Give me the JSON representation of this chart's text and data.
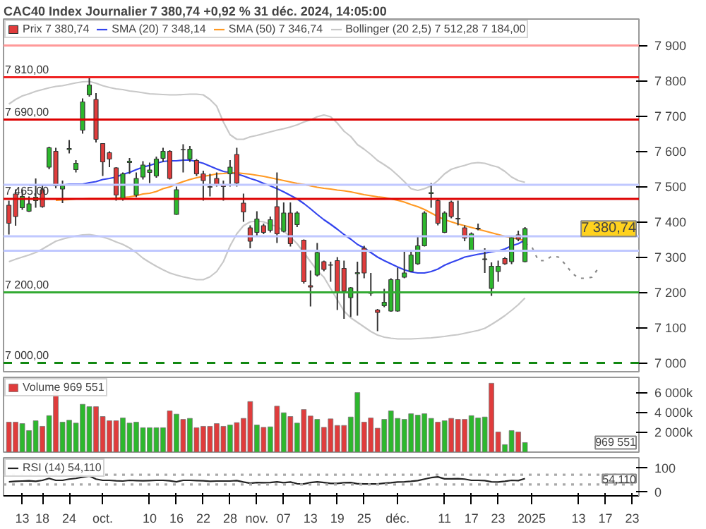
{
  "chart_data": [
    {
      "type": "candlestick",
      "title": "CAC40 Index Journalier 7 380,74 +0,92 % 31 déc. 2024, 14:05:00",
      "series": [
        {
          "name": "Prix 7 380,74",
          "type": "candlestick",
          "ohlc": [
            [
              7447,
              7460,
              7364,
              7396
            ],
            [
              7479,
              7492,
              7389,
              7415
            ],
            [
              7440,
              7492,
              7434,
              7472
            ],
            [
              7430,
              7472,
              7428,
              7451
            ],
            [
              7460,
              7523,
              7440,
              7470
            ],
            [
              7491,
              7504,
              7440,
              7443
            ],
            [
              7555,
              7613,
              7549,
              7610
            ],
            [
              7600,
              7610,
              7495,
              7502
            ],
            [
              7493,
              7517,
              7453,
              7502
            ],
            [
              7605,
              7632,
              7594,
              7608
            ],
            [
              7548,
              7575,
              7540,
              7566
            ],
            [
              7660,
              7750,
              7650,
              7740
            ],
            [
              7760,
              7808,
              7755,
              7788
            ],
            [
              7747,
              7765,
              7625,
              7634
            ],
            [
              7622,
              7622,
              7530,
              7570
            ],
            [
              7596,
              7600,
              7555,
              7578
            ],
            [
              7553,
              7555,
              7460,
              7476
            ],
            [
              7466,
              7540,
              7460,
              7536
            ],
            [
              7568,
              7581,
              7536,
              7572
            ],
            [
              7476,
              7540,
              7470,
              7523
            ],
            [
              7527,
              7572,
              7520,
              7561
            ],
            [
              7540,
              7568,
              7510,
              7547
            ],
            [
              7530,
              7585,
              7525,
              7578
            ],
            [
              7580,
              7610,
              7570,
              7600
            ],
            [
              7600,
              7603,
              7520,
              7523
            ],
            [
              7421,
              7500,
              7420,
              7491
            ],
            [
              7605,
              7620,
              7540,
              7604
            ],
            [
              7578,
              7615,
              7570,
              7606
            ],
            [
              7574,
              7578,
              7530,
              7536
            ],
            [
              7536,
              7545,
              7460,
              7517
            ],
            [
              7500,
              7536,
              7472,
              7498
            ],
            [
              7523,
              7540,
              7500,
              7504
            ],
            [
              7505,
              7517,
              7460,
              7500
            ],
            [
              7536,
              7575,
              7500,
              7555
            ],
            [
              7591,
              7610,
              7500,
              7510
            ],
            [
              7453,
              7480,
              7400,
              7428
            ],
            [
              7383,
              7390,
              7325,
              7345
            ],
            [
              7370,
              7430,
              7360,
              7408
            ],
            [
              7389,
              7395,
              7365,
              7370
            ],
            [
              7376,
              7415,
              7370,
              7406
            ],
            [
              7443,
              7540,
              7340,
              7366
            ],
            [
              7373,
              7455,
              7370,
              7425
            ],
            [
              7425,
              7455,
              7330,
              7338
            ],
            [
              7392,
              7430,
              7385,
              7425
            ],
            [
              7348,
              7350,
              7225,
              7230
            ],
            [
              7219,
              7262,
              7160,
              7215
            ],
            [
              7249,
              7340,
              7245,
              7313
            ],
            [
              7287,
              7290,
              7260,
              7265
            ],
            [
              7278,
              7287,
              7230,
              7277
            ],
            [
              7290,
              7300,
              7150,
              7198
            ],
            [
              7268,
              7290,
              7125,
              7204
            ],
            [
              7185,
              7215,
              7130,
              7213
            ],
            [
              7253,
              7287,
              7134,
              7256
            ],
            [
              7325,
              7332,
              7240,
              7255
            ],
            [
              7200,
              7255,
              7190,
              7197
            ],
            [
              7150,
              7153,
              7090,
              7143
            ],
            [
              7162,
              7210,
              7158,
              7172
            ],
            [
              7147,
              7240,
              7145,
              7236
            ],
            [
              7147,
              7270,
              7145,
              7236
            ],
            [
              7243,
              7320,
              7240,
              7255
            ],
            [
              7260,
              7320,
              7258,
              7306
            ],
            [
              7281,
              7360,
              7278,
              7332
            ],
            [
              7332,
              7430,
              7330,
              7425
            ],
            [
              7480,
              7510,
              7440,
              7483
            ],
            [
              7460,
              7465,
              7390,
              7396
            ],
            [
              7370,
              7430,
              7368,
              7425
            ],
            [
              7456,
              7460,
              7410,
              7415
            ],
            [
              7410,
              7460,
              7390,
              7408
            ],
            [
              7383,
              7390,
              7345,
              7354
            ],
            [
              7319,
              7370,
              7315,
              7366
            ],
            [
              7380,
              7395,
              7376,
              7382
            ],
            [
              7293,
              7325,
              7255,
              7295
            ],
            [
              7211,
              7285,
              7190,
              7274
            ],
            [
              7259,
              7290,
              7230,
              7274
            ],
            [
              7296,
              7300,
              7278,
              7281
            ],
            [
              7287,
              7360,
              7280,
              7355
            ],
            [
              7363,
              7375,
              7345,
              7351
            ],
            [
              7287,
              7385,
              7285,
              7380.74
            ],
            null,
            null,
            null,
            null,
            null,
            null,
            null,
            null,
            null,
            null,
            null,
            null,
            null,
            null,
            null,
            null,
            null
          ],
          "colors": [
            "#e03c3c",
            "#e03c3c",
            "#2db82d",
            "#2db82d",
            "#2db82d",
            "#e03c3c",
            "#2db82d",
            "#e03c3c",
            "#2db82d",
            "#2db82d",
            "#2db82d",
            "#2db82d",
            "#2db82d",
            "#e03c3c",
            "#e03c3c",
            "#e03c3c",
            "#e03c3c",
            "#2db82d",
            "#2db82d",
            "#2db82d",
            "#2db82d",
            "#2db82d",
            "#2db82d",
            "#2db82d",
            "#e03c3c",
            "#2db82d",
            "#e03c3c",
            "#2db82d",
            "#e03c3c",
            "#e03c3c",
            "#e03c3c",
            "#e03c3c",
            "#e03c3c",
            "#2db82d",
            "#e03c3c",
            "#e03c3c",
            "#e03c3c",
            "#2db82d",
            "#e03c3c",
            "#2db82d",
            "#e03c3c",
            "#2db82d",
            "#e03c3c",
            "#2db82d",
            "#e03c3c",
            "#e03c3c",
            "#2db82d",
            "#e03c3c",
            "#e03c3c",
            "#e03c3c",
            "#e03c3c",
            "#2db82d",
            "#2db82d",
            "#e03c3c",
            "#e03c3c",
            "#e03c3c",
            "#2db82d",
            "#2db82d",
            "#2db82d",
            "#2db82d",
            "#2db82d",
            "#2db82d",
            "#2db82d",
            "#2db82d",
            "#e03c3c",
            "#2db82d",
            "#e03c3c",
            "#e03c3c",
            "#e03c3c",
            "#2db82d",
            "#2db82d",
            "#2db82d",
            "#2db82d",
            "#2db82d",
            "#e03c3c",
            "#2db82d",
            "#e03c3c",
            "#2db82d",
            null,
            null,
            null,
            null,
            null,
            null,
            null,
            null,
            null,
            null,
            null,
            null,
            null,
            null,
            null,
            null,
            null
          ]
        },
        {
          "name": "SMA (20) 7 348,14",
          "type": "line",
          "color": "#3344ee",
          "values": [
            null,
            null,
            null,
            7504,
            7504,
            7504,
            7504,
            7504,
            7504,
            7507,
            7507,
            7507,
            7511,
            7514,
            7520,
            7523,
            7527,
            7535,
            7540,
            7548,
            7555,
            7560,
            7566,
            7571,
            7573,
            7573,
            7575,
            7575,
            7571,
            7566,
            7558,
            7550,
            7543,
            7539,
            7536,
            7530,
            7523,
            7517,
            7509,
            7502,
            7494,
            7485,
            7475,
            7465,
            7452,
            7437,
            7421,
            7406,
            7393,
            7379,
            7364,
            7351,
            7336,
            7326,
            7313,
            7300,
            7290,
            7281,
            7272,
            7264,
            7258,
            7255,
            7255,
            7259,
            7266,
            7277,
            7285,
            7292,
            7300,
            7304,
            7308,
            7311,
            7315,
            7318,
            7323,
            7332,
            7338,
            7348,
            null,
            null,
            null,
            null,
            null,
            null,
            null,
            null,
            null,
            null,
            null,
            null,
            null,
            null,
            null,
            null,
            null
          ]
        },
        {
          "name": "SMA (50) 7 346,74",
          "type": "line",
          "color": "#ff9922",
          "values": [
            null,
            null,
            null,
            null,
            null,
            null,
            null,
            7461,
            7462,
            7463,
            7465,
            7465,
            7466,
            7466,
            7466,
            7466,
            7467,
            7469,
            7471,
            7474,
            7479,
            7481,
            7486,
            7494,
            7499,
            7507,
            7514,
            7520,
            7525,
            7529,
            7532,
            7536,
            7537,
            7539,
            7539,
            7537,
            7535,
            7532,
            7529,
            7525,
            7521,
            7517,
            7513,
            7509,
            7506,
            7502,
            7498,
            7495,
            7493,
            7490,
            7488,
            7485,
            7481,
            7477,
            7474,
            7471,
            7469,
            7465,
            7461,
            7456,
            7449,
            7443,
            7435,
            7425,
            7415,
            7406,
            7400,
            7394,
            7389,
            7384,
            7379,
            7374,
            7369,
            7364,
            7359,
            7355,
            7351,
            7347,
            null,
            null,
            null,
            null,
            null,
            null,
            null,
            null,
            null,
            null,
            null,
            null,
            null,
            null,
            null,
            null,
            null
          ]
        },
        {
          "name": "Bollinger (20 2,5) 7 512,28 7 184,00",
          "type": "line",
          "color": "#c8c8c8",
          "values": [
            7734,
            7747,
            7757,
            7763,
            7770,
            7775,
            7780,
            7784,
            7786,
            7790,
            7794,
            7797,
            7798,
            7793,
            7786,
            7781,
            7777,
            7775,
            7771,
            7769,
            7766,
            7763,
            7762,
            7761,
            7760,
            7760,
            7761,
            7762,
            7762,
            7760,
            7747,
            7728,
            7683,
            7647,
            7634,
            7634,
            7641,
            7645,
            7650,
            7655,
            7660,
            7664,
            7669,
            7675,
            7683,
            7689,
            7698,
            7703,
            7698,
            7680,
            7657,
            7642,
            7619,
            7606,
            7591,
            7574,
            7562,
            7549,
            7532,
            7514,
            7494,
            7489,
            7494,
            7502,
            7517,
            7536,
            7549,
            7555,
            7560,
            7566,
            7568,
            7566,
            7560,
            7555,
            7543,
            7527,
            7517,
            7512,
            null,
            null,
            null,
            null,
            null,
            null,
            null,
            null,
            null,
            null,
            null,
            null,
            null,
            null,
            null,
            null,
            null
          ]
        },
        {
          "type": "line",
          "color": "#c8c8c8",
          "values": [
            7287,
            7294,
            7300,
            7306,
            7313,
            7323,
            7334,
            7345,
            7351,
            7356,
            7360,
            7363,
            7364,
            7361,
            7357,
            7351,
            7343,
            7336,
            7326,
            7313,
            7297,
            7285,
            7274,
            7264,
            7255,
            7249,
            7244,
            7240,
            7236,
            7236,
            7244,
            7259,
            7287,
            7332,
            7366,
            7389,
            7400,
            7402,
            7400,
            7392,
            7387,
            7374,
            7357,
            7338,
            7313,
            7287,
            7262,
            7243,
            7211,
            7179,
            7147,
            7128,
            7115,
            7102,
            7089,
            7079,
            7073,
            7070,
            7068,
            7068,
            7068,
            7069,
            7070,
            7071,
            7073,
            7075,
            7078,
            7080,
            7084,
            7088,
            7092,
            7098,
            7109,
            7121,
            7134,
            7149,
            7165,
            7184,
            null,
            null,
            null,
            null,
            null,
            null,
            null,
            null,
            null,
            null,
            null,
            null,
            null,
            null,
            null,
            null,
            null
          ]
        },
        {
          "type": "line",
          "color": "#888888",
          "line_style": "dotted",
          "values": [
            null,
            null,
            null,
            null,
            null,
            null,
            null,
            null,
            null,
            null,
            null,
            null,
            null,
            null,
            null,
            null,
            null,
            null,
            null,
            null,
            null,
            null,
            null,
            null,
            null,
            null,
            null,
            null,
            null,
            null,
            null,
            null,
            null,
            null,
            null,
            null,
            null,
            null,
            null,
            null,
            null,
            null,
            null,
            null,
            null,
            null,
            null,
            null,
            null,
            null,
            null,
            null,
            null,
            null,
            null,
            null,
            null,
            null,
            null,
            null,
            null,
            null,
            null,
            null,
            null,
            null,
            null,
            null,
            null,
            null,
            null,
            null,
            null,
            null,
            null,
            null,
            null,
            7338,
            7330,
            7290,
            7290,
            7303,
            7300,
            7280,
            7255,
            7240,
            7240,
            7243,
            7270,
            null,
            null,
            null,
            null,
            null,
            null
          ]
        }
      ],
      "ref_lines": [
        {
          "axis": "y",
          "value": 7900,
          "label": null,
          "color": "#ff9999"
        },
        {
          "axis": "y",
          "value": 7810,
          "label": "7 810,00",
          "color": "#ee2222"
        },
        {
          "axis": "y",
          "value": 7690,
          "label": "7 690,00",
          "color": "#dd0000"
        },
        {
          "axis": "y",
          "value": 7505,
          "label": null,
          "color": "#c0c8ff"
        },
        {
          "axis": "y",
          "value": 7465,
          "label": "7 465,00",
          "color": "#dd0000"
        },
        {
          "axis": "y",
          "value": 7359,
          "label": null,
          "color": "#c0c8ff"
        },
        {
          "axis": "y",
          "value": 7318,
          "label": null,
          "color": "#c0c8ff"
        },
        {
          "axis": "y",
          "value": 7200,
          "label": "7 200,00",
          "color": "#33aa33"
        },
        {
          "axis": "y",
          "value": 7000,
          "label": "7 000,00",
          "color": "#118811",
          "line_style": "dashed"
        }
      ],
      "annotations": [
        "7 380,74"
      ],
      "ylim": [
        6975,
        7975
      ],
      "yticks": [
        {
          "value": 7000,
          "label": "7 000"
        },
        {
          "value": 7100,
          "label": "7 100"
        },
        {
          "value": 7200,
          "label": "7 200"
        },
        {
          "value": 7300,
          "label": "7 300"
        },
        {
          "value": 7400,
          "label": "7 400"
        },
        {
          "value": 7500,
          "label": "7 500"
        },
        {
          "value": 7600,
          "label": "7 600"
        },
        {
          "value": 7700,
          "label": "7 700"
        },
        {
          "value": 7800,
          "label": "7 800"
        },
        {
          "value": 7900,
          "label": "7 900"
        }
      ],
      "legend": "top left",
      "tick_labels": "y"
    },
    {
      "type": "bar",
      "series": [
        {
          "name": "Volume 969 551",
          "values": [
            3050,
            3050,
            2900,
            2190,
            3190,
            2620,
            3710,
            6140,
            3050,
            3240,
            2950,
            4860,
            4620,
            4620,
            3620,
            3190,
            3190,
            3470,
            2950,
            3050,
            2480,
            2480,
            2480,
            2480,
            4190,
            3860,
            3330,
            3430,
            2480,
            2620,
            2620,
            2900,
            2620,
            2760,
            3000,
            3430,
            5140,
            2760,
            2520,
            2570,
            4670,
            4000,
            3620,
            2950,
            4330,
            3670,
            3330,
            2520,
            3380,
            2710,
            2710,
            3570,
            6050,
            3050,
            3470,
            2430,
            3330,
            4190,
            3430,
            3330,
            3900,
            3760,
            3900,
            3430,
            3050,
            3190,
            3430,
            3330,
            3330,
            3710,
            3470,
            3570,
            7000,
            2050,
            760,
            2190,
            2050,
            969.551,
            null,
            null,
            null,
            null,
            null,
            null,
            null,
            null,
            null,
            null,
            null,
            null,
            null,
            null,
            null,
            null,
            null
          ],
          "colors": [
            "#e03c3c",
            "#e03c3c",
            "#2db82d",
            "#2db82d",
            "#2db82d",
            "#e03c3c",
            "#2db82d",
            "#e03c3c",
            "#2db82d",
            "#2db82d",
            "#2db82d",
            "#2db82d",
            "#2db82d",
            "#e03c3c",
            "#e03c3c",
            "#e03c3c",
            "#e03c3c",
            "#2db82d",
            "#2db82d",
            "#2db82d",
            "#2db82d",
            "#2db82d",
            "#2db82d",
            "#2db82d",
            "#e03c3c",
            "#2db82d",
            "#e03c3c",
            "#2db82d",
            "#e03c3c",
            "#e03c3c",
            "#e03c3c",
            "#e03c3c",
            "#e03c3c",
            "#2db82d",
            "#e03c3c",
            "#e03c3c",
            "#e03c3c",
            "#2db82d",
            "#e03c3c",
            "#2db82d",
            "#e03c3c",
            "#2db82d",
            "#e03c3c",
            "#2db82d",
            "#e03c3c",
            "#e03c3c",
            "#2db82d",
            "#e03c3c",
            "#e03c3c",
            "#e03c3c",
            "#e03c3c",
            "#2db82d",
            "#2db82d",
            "#e03c3c",
            "#e03c3c",
            "#e03c3c",
            "#2db82d",
            "#2db82d",
            "#2db82d",
            "#2db82d",
            "#2db82d",
            "#2db82d",
            "#2db82d",
            "#2db82d",
            "#e03c3c",
            "#2db82d",
            "#e03c3c",
            "#e03c3c",
            "#e03c3c",
            "#2db82d",
            "#2db82d",
            "#2db82d",
            "#e03c3c",
            "#e03c3c",
            "#2db82d",
            "#2db82d",
            "#e03c3c",
            "#2db82d",
            null,
            null,
            null,
            null,
            null,
            null,
            null,
            null,
            null,
            null,
            null,
            null,
            null,
            null,
            null,
            null,
            null
          ]
        }
      ],
      "annotations": [
        "969 551"
      ],
      "ylim": [
        0,
        7600
      ],
      "yticks": [
        {
          "value": 2000,
          "label": "2 000k"
        },
        {
          "value": 4000,
          "label": "4 000k"
        },
        {
          "value": 6000,
          "label": "6 000k"
        }
      ],
      "legend": "top left",
      "tick_labels": "y"
    },
    {
      "type": "line",
      "categories": [
        null,
        null,
        "13",
        null,
        null,
        "18",
        null,
        null,
        null,
        "24",
        null,
        null,
        null,
        null,
        "oct.",
        null,
        null,
        null,
        null,
        null,
        null,
        "10",
        null,
        null,
        null,
        "16",
        null,
        null,
        null,
        "22",
        null,
        null,
        null,
        "28",
        null,
        null,
        null,
        "nov.",
        null,
        null,
        null,
        "07",
        null,
        null,
        null,
        "13",
        null,
        null,
        null,
        "19",
        null,
        null,
        null,
        "25",
        null,
        null,
        null,
        null,
        "déc.",
        null,
        null,
        null,
        null,
        null,
        null,
        "11",
        null,
        null,
        null,
        "17",
        null,
        null,
        null,
        "23",
        null,
        null,
        null,
        null,
        "2025",
        null,
        null,
        null,
        null,
        null,
        null,
        "13",
        null,
        null,
        null,
        "17",
        null,
        null,
        null,
        "23",
        null
      ],
      "series": [
        {
          "name": "RSI (14) 54,110",
          "color": "#222222",
          "values": [
            41,
            43,
            44,
            45,
            43,
            47,
            55,
            47,
            47,
            52,
            55,
            60,
            65,
            52,
            47,
            47,
            45,
            44,
            47,
            46,
            45,
            46,
            47,
            47,
            45,
            41,
            47,
            47,
            46,
            45,
            43,
            44,
            44,
            44,
            46,
            40,
            35,
            38,
            37,
            38,
            41,
            37,
            40,
            33,
            32,
            38,
            41,
            38,
            34,
            34,
            37,
            38,
            33,
            32,
            32,
            32,
            35,
            37,
            40,
            41,
            43,
            46,
            52,
            58,
            61,
            53,
            53,
            54,
            52,
            47,
            47,
            46,
            41,
            40,
            43,
            47,
            46,
            54.11,
            null,
            null,
            null,
            null,
            null,
            null,
            null,
            null,
            null,
            null,
            null,
            null,
            null,
            null,
            null,
            null,
            null
          ]
        }
      ],
      "ref_lines": [
        {
          "axis": "y",
          "value": 70,
          "label": null,
          "color": "#aaaaaa",
          "line_style": "dotted"
        },
        {
          "axis": "y",
          "value": 30,
          "label": null,
          "color": "#aaaaaa",
          "line_style": "dotted"
        }
      ],
      "annotations": [
        "54,110"
      ],
      "ylim": [
        -17,
        140
      ],
      "yticks": [
        0,
        100
      ],
      "legend": "top left"
    }
  ]
}
